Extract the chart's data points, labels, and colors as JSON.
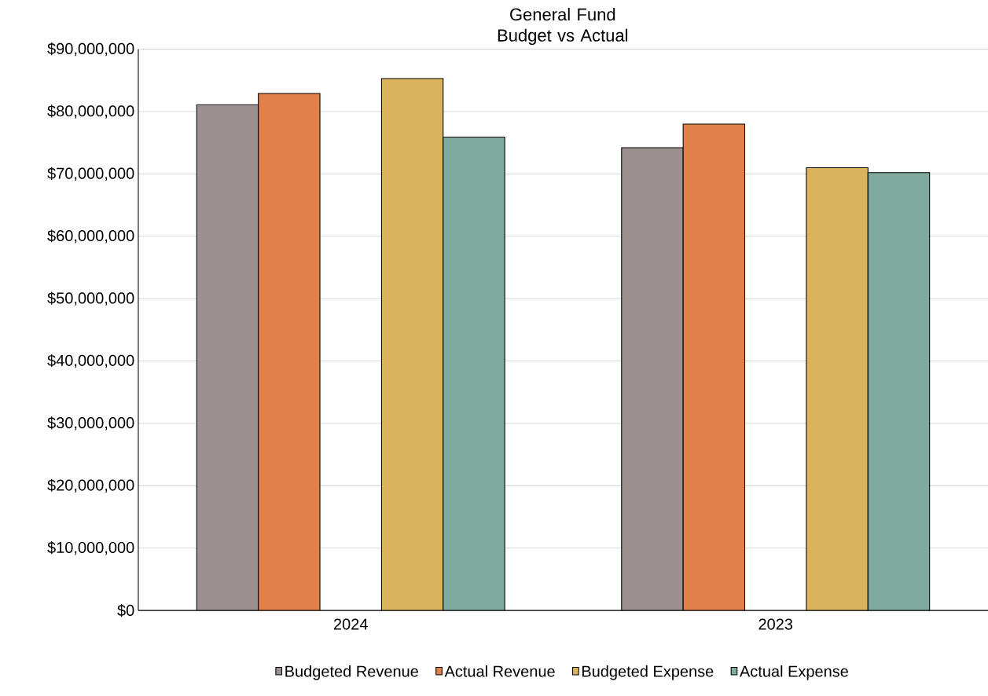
{
  "chart_data": {
    "type": "bar",
    "title": "General Fund\nBudget vs Actual",
    "categories": [
      "2024",
      "2023"
    ],
    "series": [
      {
        "name": "Budgeted Revenue",
        "color": "#9c9190",
        "values": [
          81100000,
          74200000
        ]
      },
      {
        "name": "Actual Revenue",
        "color": "#e0814a",
        "values": [
          82900000,
          78000000
        ]
      },
      {
        "name": "Budgeted Expense",
        "color": "#dab35c",
        "values": [
          85300000,
          71000000
        ]
      },
      {
        "name": "Actual Expense",
        "color": "#7fab9f",
        "values": [
          75900000,
          70200000
        ]
      }
    ],
    "ylim": [
      0,
      90000000
    ],
    "yticks": [
      {
        "value": 0,
        "label": "$0"
      },
      {
        "value": 10000000,
        "label": "$10,000,000"
      },
      {
        "value": 20000000,
        "label": "$20,000,000"
      },
      {
        "value": 30000000,
        "label": "$30,000,000"
      },
      {
        "value": 40000000,
        "label": "$40,000,000"
      },
      {
        "value": 50000000,
        "label": "$50,000,000"
      },
      {
        "value": 60000000,
        "label": "$60,000,000"
      },
      {
        "value": 70000000,
        "label": "$70,000,000"
      },
      {
        "value": 80000000,
        "label": "$80,000,000"
      },
      {
        "value": 90000000,
        "label": "$90,000,000"
      }
    ],
    "grid": "y",
    "legend": "bottom"
  }
}
